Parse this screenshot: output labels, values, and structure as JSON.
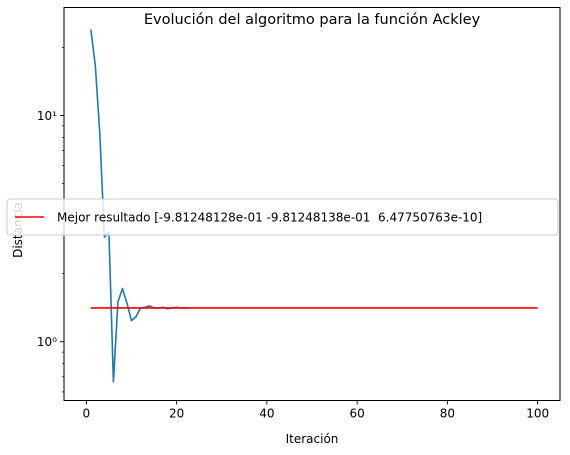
{
  "chart_data": {
    "type": "line",
    "title": "Evolución del algoritmo para la función Ackley",
    "xlabel": "Iteración",
    "ylabel": "Distancia",
    "xlim": [
      -4.95,
      104.95
    ],
    "ylim": [
      0.55,
      30
    ],
    "y_scale": "log",
    "grid": false,
    "legend_position": "center-left",
    "x_ticks": [
      0,
      20,
      40,
      60,
      80,
      100
    ],
    "x_tick_labels": [
      "0",
      "20",
      "40",
      "60",
      "80",
      "100"
    ],
    "y_ticks": [
      1,
      10
    ],
    "y_tick_labels": [
      "10⁰",
      "10¹"
    ],
    "y_minor_ticks": [
      0.6,
      0.7,
      0.8,
      0.9,
      2,
      3,
      4,
      5,
      6,
      7,
      8,
      9,
      20
    ],
    "series": [
      {
        "color": "#1f77b4",
        "x": [
          1,
          2,
          3,
          4,
          5,
          6,
          7,
          8,
          9,
          10,
          11,
          12,
          13,
          14,
          15,
          16,
          17,
          18,
          19,
          20,
          21,
          22,
          23
        ],
        "values": [
          24,
          16.5,
          8.2,
          2.9,
          3.05,
          0.665,
          1.5,
          1.72,
          1.48,
          1.24,
          1.29,
          1.41,
          1.42,
          1.44,
          1.41,
          1.41,
          1.42,
          1.4,
          1.41,
          1.42,
          1.41,
          1.41,
          1.41
        ]
      },
      {
        "name": "Mejor resultado [-9.81248128e-01 -9.81248138e-01  6.47750763e-10]",
        "color": "#ff0000",
        "x": [
          1,
          100
        ],
        "values": [
          1.41,
          1.41
        ]
      }
    ]
  }
}
